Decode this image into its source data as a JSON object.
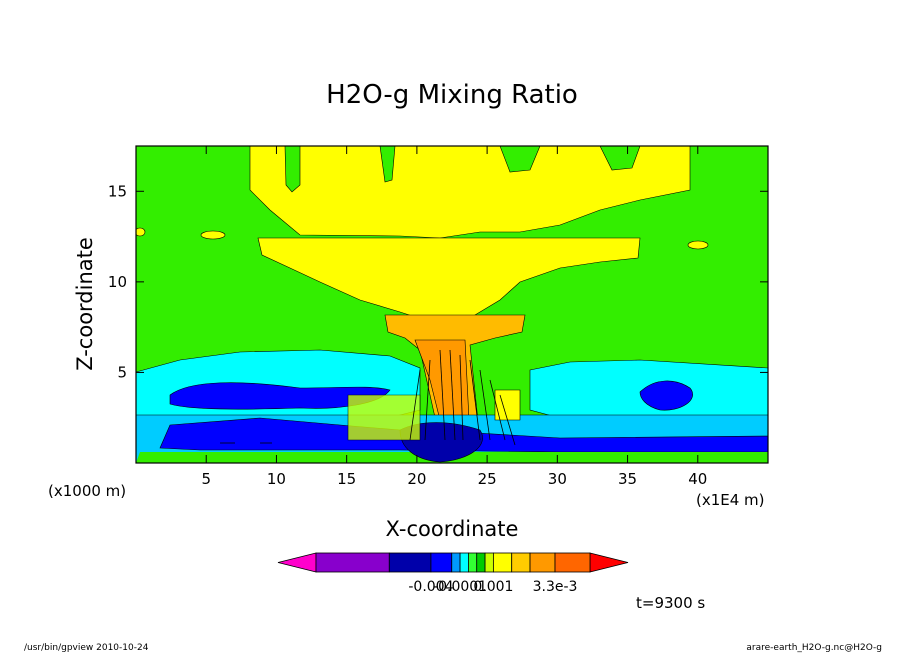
{
  "chart_data": {
    "type": "heatmap",
    "title": "H2O-g Mixing Ratio",
    "xlabel": "X-coordinate",
    "ylabel": "Z-coordinate",
    "x_unit_left": "(x1000 m)",
    "x_unit_right": "(x1E4 m)",
    "xlim": [
      0,
      45
    ],
    "ylim": [
      0,
      17.5
    ],
    "x_ticks": [
      5,
      10,
      15,
      20,
      25,
      30,
      35,
      40
    ],
    "y_ticks": [
      5,
      10,
      15
    ],
    "colorbar": {
      "colors": [
        "#ff00cc",
        "#8800cc",
        "#0000aa",
        "#0000ff",
        "#0099ff",
        "#00ffff",
        "#33ff33",
        "#00cc00",
        "#ccff00",
        "#ffff00",
        "#ffcc00",
        "#ff9900",
        "#ff6600",
        "#ff0000"
      ],
      "tick_labels": [
        "-0.004",
        "-0.0001",
        "0.001",
        "3.3e-3"
      ]
    },
    "time_label": "t=9300 s"
  },
  "footer": {
    "left": "/usr/bin/gpview   2010-10-24",
    "right": "arare-earth_H2O-g.nc@H2O-g"
  }
}
